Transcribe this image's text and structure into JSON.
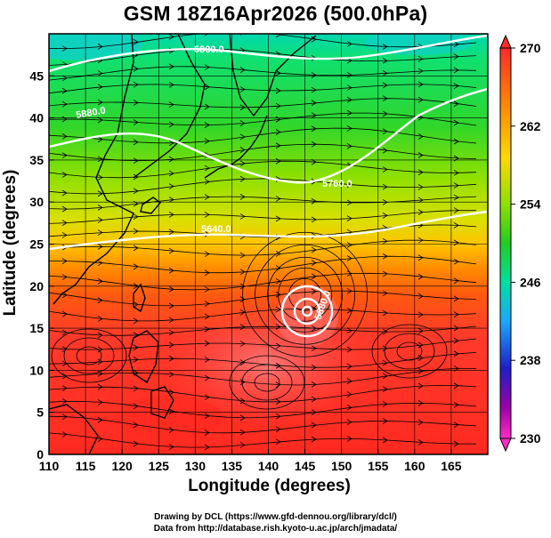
{
  "title": "GSM 18Z16Apr2026 (500.0hPa)",
  "axes": {
    "xlabel": "Longitude (degrees)",
    "ylabel": "Latitude  (degrees)",
    "x_ticks": [
      "110",
      "115",
      "120",
      "125",
      "130",
      "135",
      "140",
      "145",
      "150",
      "155",
      "160",
      "165"
    ],
    "y_ticks": [
      "0",
      "5",
      "10",
      "15",
      "20",
      "25",
      "30",
      "35",
      "40",
      "45"
    ]
  },
  "colorbar": {
    "labels": [
      "270",
      "262",
      "254",
      "246",
      "238",
      "230"
    ],
    "colors": [
      "#e8e8e8",
      "#ff2a2a",
      "#ff8a00",
      "#ffd800",
      "#8ee000",
      "#22cc22",
      "#00e0a0",
      "#1aa8ff",
      "#1f1fc8",
      "#9a00a8",
      "#ff2ac8"
    ]
  },
  "contour_labels": [
    "5880.0",
    "5880.0",
    "5760.0",
    "5640.0",
    "5880.0"
  ],
  "footer": {
    "line1": "Drawing by DCL (https://www.gfd-dennou.org/library/dcl/)",
    "line2": "Data from http://database.rish.kyoto-u.ac.jp/arch/jmadata/"
  },
  "chart_data": {
    "type": "heatmap",
    "title": "GSM 18Z16Apr2026 (500.0hPa)",
    "xlabel": "Longitude (degrees)",
    "ylabel": "Latitude  (degrees)",
    "xlim": [
      110,
      170
    ],
    "ylim": [
      0,
      50
    ],
    "x_ticks": [
      110,
      115,
      120,
      125,
      130,
      135,
      140,
      145,
      150,
      155,
      160,
      165
    ],
    "y_ticks": [
      0,
      5,
      10,
      15,
      20,
      25,
      30,
      35,
      40,
      45
    ],
    "colorbar_range": [
      230,
      270
    ],
    "colorbar_ticks": [
      270,
      262,
      254,
      246,
      238,
      230
    ],
    "typhoon_center": {
      "lon": 145,
      "lat": 19
    },
    "features": [
      "temperature shading (K)",
      "geopotential height contours (white)",
      "wind streamlines (black)",
      "coastlines"
    ]
  }
}
